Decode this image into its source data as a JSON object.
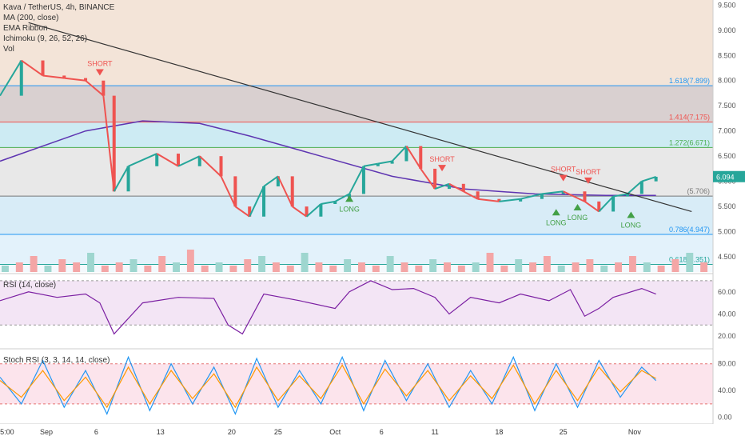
{
  "header": {
    "title": "Kava / TetherUS, 4h, BINANCE",
    "indicators": [
      "MA (200, close)",
      "EMA Ribbon",
      "Ichimoku (9, 26, 52, 26)",
      "Vol"
    ]
  },
  "rsi_panel": {
    "label": "RSI (14, close)"
  },
  "stoch_panel": {
    "label": "Stoch RSI (3, 3, 14, 14, close)"
  },
  "x_ticks": [
    "5:00",
    "Sep",
    "6",
    "13",
    "20",
    "25",
    "Oct",
    "6",
    "11",
    "18",
    "25",
    "Nov"
  ],
  "price_tag": "6.094",
  "colors": {
    "bull": "#26a69a",
    "bear": "#ef5350",
    "rsi": "#7b1fa2",
    "ma200": "#5e35b1",
    "stoch_k": "#2196f3",
    "stoch_d": "#ff9800",
    "long": "#43a047",
    "short": "#ef5350"
  },
  "chart_data": [
    {
      "type": "candlestick",
      "title": "Kava / TetherUS, 4h, BINANCE",
      "y_ticks": [
        "9.500",
        "9.000",
        "8.500",
        "8.000",
        "7.500",
        "7.000",
        "6.500",
        "6.000",
        "5.500",
        "5.000",
        "4.500"
      ],
      "ylim": [
        4.2,
        9.6
      ],
      "fib_levels": [
        {
          "label": "1.618(7.899)",
          "value": 7.899
        },
        {
          "label": "1.414(7.175)",
          "value": 7.175
        },
        {
          "label": "1.272(6.671)",
          "value": 6.671
        },
        {
          "label": "(5.706)",
          "value": 5.706
        },
        {
          "label": "0.786(4.947)",
          "value": 4.947
        },
        {
          "label": "0.618(4.351)",
          "value": 4.351
        }
      ],
      "signals": [
        {
          "label": "SHORT",
          "kind": "short",
          "x": 0.14,
          "value": 8.1
        },
        {
          "label": "LONG",
          "kind": "long",
          "x": 0.49,
          "value": 5.72
        },
        {
          "label": "SHORT",
          "kind": "short",
          "x": 0.62,
          "value": 6.2
        },
        {
          "label": "SHORT",
          "kind": "short",
          "x": 0.79,
          "value": 6.0
        },
        {
          "label": "LONG",
          "kind": "long",
          "x": 0.78,
          "value": 5.45
        },
        {
          "label": "LONG",
          "kind": "long",
          "x": 0.81,
          "value": 5.55
        },
        {
          "label": "SHORT",
          "kind": "short",
          "x": 0.825,
          "value": 5.95
        },
        {
          "label": "LONG",
          "kind": "long",
          "x": 0.885,
          "value": 5.4
        }
      ],
      "trendline": {
        "x": [
          0.04,
          0.97
        ],
        "value": [
          9.15,
          5.4
        ]
      },
      "price_series": {
        "x": [
          0,
          0.03,
          0.06,
          0.09,
          0.12,
          0.145,
          0.16,
          0.18,
          0.22,
          0.25,
          0.28,
          0.31,
          0.33,
          0.35,
          0.37,
          0.39,
          0.41,
          0.43,
          0.45,
          0.47,
          0.49,
          0.51,
          0.53,
          0.55,
          0.57,
          0.59,
          0.61,
          0.63,
          0.65,
          0.67,
          0.7,
          0.73,
          0.76,
          0.79,
          0.82,
          0.84,
          0.86,
          0.88,
          0.9,
          0.92
        ],
        "close": [
          7.7,
          8.4,
          8.1,
          8.05,
          8.0,
          7.7,
          5.8,
          6.3,
          6.55,
          6.3,
          6.5,
          6.1,
          5.5,
          5.3,
          5.9,
          6.1,
          5.5,
          5.3,
          5.55,
          5.6,
          5.75,
          6.3,
          6.35,
          6.4,
          6.7,
          6.25,
          5.85,
          5.95,
          5.8,
          5.65,
          5.6,
          5.65,
          5.75,
          5.8,
          5.6,
          5.4,
          5.7,
          5.75,
          6.0,
          6.09
        ]
      },
      "ma200": {
        "x": [
          0,
          0.12,
          0.2,
          0.28,
          0.35,
          0.45,
          0.55,
          0.65,
          0.75,
          0.85,
          0.92
        ],
        "value": [
          6.4,
          7.0,
          7.2,
          7.15,
          6.9,
          6.5,
          6.1,
          5.85,
          5.75,
          5.72,
          5.72
        ]
      },
      "volume": [
        2,
        3,
        5,
        2,
        4,
        3,
        6,
        2,
        3,
        4,
        2,
        5,
        3,
        7,
        2,
        3,
        2,
        4,
        5,
        3,
        2,
        6,
        3,
        2,
        4,
        3,
        2,
        5,
        3,
        2,
        4,
        3,
        2,
        3,
        6,
        2,
        4,
        3,
        5,
        2,
        3,
        4,
        2,
        3,
        5,
        3,
        2,
        4,
        6,
        3
      ]
    },
    {
      "type": "line",
      "title": "RSI (14, close)",
      "y_ticks": [
        "60.00",
        "40.00",
        "20.00"
      ],
      "ylim": [
        10,
        75
      ],
      "bands": [
        30,
        70
      ],
      "x": [
        0,
        0.04,
        0.08,
        0.12,
        0.14,
        0.16,
        0.2,
        0.25,
        0.3,
        0.32,
        0.34,
        0.37,
        0.42,
        0.47,
        0.49,
        0.52,
        0.55,
        0.58,
        0.61,
        0.63,
        0.66,
        0.7,
        0.73,
        0.77,
        0.8,
        0.82,
        0.84,
        0.86,
        0.9,
        0.92
      ],
      "values": [
        52,
        60,
        55,
        58,
        50,
        22,
        50,
        55,
        54,
        30,
        22,
        58,
        52,
        45,
        60,
        70,
        62,
        63,
        55,
        40,
        55,
        50,
        58,
        52,
        62,
        38,
        45,
        55,
        63,
        58
      ]
    },
    {
      "type": "line",
      "title": "Stoch RSI (3, 3, 14, 14, close)",
      "y_ticks": [
        "80.00",
        "40.00",
        "0.00"
      ],
      "ylim": [
        -10,
        100
      ],
      "bands": [
        20,
        80
      ],
      "series": [
        {
          "x": [
            0,
            0.03,
            0.06,
            0.09,
            0.12,
            0.15,
            0.18,
            0.21,
            0.24,
            0.27,
            0.3,
            0.33,
            0.36,
            0.39,
            0.42,
            0.45,
            0.48,
            0.51,
            0.54,
            0.57,
            0.6,
            0.63,
            0.66,
            0.69,
            0.72,
            0.75,
            0.78,
            0.81,
            0.84,
            0.87,
            0.9,
            0.92
          ],
          "values": [
            60,
            20,
            85,
            15,
            70,
            5,
            90,
            10,
            80,
            20,
            75,
            5,
            88,
            15,
            70,
            20,
            90,
            10,
            85,
            25,
            80,
            15,
            70,
            20,
            90,
            10,
            80,
            15,
            85,
            30,
            75,
            55
          ]
        },
        {
          "x": [
            0,
            0.03,
            0.06,
            0.09,
            0.12,
            0.15,
            0.18,
            0.21,
            0.24,
            0.27,
            0.3,
            0.33,
            0.36,
            0.39,
            0.42,
            0.45,
            0.48,
            0.51,
            0.54,
            0.57,
            0.6,
            0.63,
            0.66,
            0.69,
            0.72,
            0.75,
            0.78,
            0.81,
            0.84,
            0.87,
            0.9,
            0.92
          ],
          "values": [
            55,
            30,
            70,
            25,
            60,
            15,
            75,
            20,
            70,
            28,
            65,
            15,
            75,
            25,
            62,
            28,
            78,
            20,
            72,
            32,
            70,
            25,
            62,
            28,
            78,
            20,
            70,
            25,
            75,
            38,
            70,
            58
          ]
        }
      ]
    }
  ]
}
